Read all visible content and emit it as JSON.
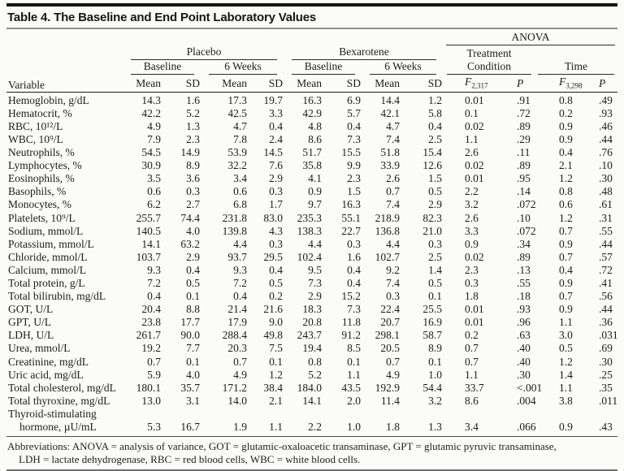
{
  "title": "Table 4. The Baseline and End Point Laboratory Values",
  "table": {
    "group_headers": {
      "anova": "ANOVA",
      "placebo": "Placebo",
      "bexarotene": "Bexarotene",
      "treatment_condition": "Treatment Condition",
      "time": "Time",
      "baseline": "Baseline",
      "six_weeks": "6 Weeks"
    },
    "column_headers": {
      "variable": "Variable",
      "mean": "Mean",
      "sd": "SD",
      "f_label": "F",
      "f_treatment_sub": "2,317",
      "f_time_sub": "3,298",
      "p_label": "P"
    },
    "rows": [
      {
        "label": "Hemoglobin, g/dL",
        "values": [
          "14.3",
          "1.6",
          "17.3",
          "19.7",
          "16.3",
          "6.9",
          "14.4",
          "1.2",
          "0.01",
          ".91",
          "0.8",
          ".49"
        ]
      },
      {
        "label": "Hematocrit, %",
        "values": [
          "42.2",
          "5.2",
          "42.5",
          "3.3",
          "42.9",
          "5.7",
          "42.1",
          "5.8",
          "0.1",
          ".72",
          "0.2",
          ".93"
        ]
      },
      {
        "label": "RBC, 10¹²/L",
        "values": [
          "4.9",
          "1.3",
          "4.7",
          "0.4",
          "4.8",
          "0.4",
          "4.7",
          "0.4",
          "0.02",
          ".89",
          "0.9",
          ".46"
        ]
      },
      {
        "label": "WBC, 10⁹/L",
        "values": [
          "7.9",
          "2.3",
          "7.8",
          "2.4",
          "8.6",
          "7.3",
          "7.4",
          "2.5",
          "1.1",
          ".29",
          "0.9",
          ".44"
        ]
      },
      {
        "label": "Neutrophils, %",
        "values": [
          "54.5",
          "14.9",
          "53.9",
          "14.5",
          "51.7",
          "15.5",
          "51.8",
          "15.4",
          "2.6",
          ".11",
          "0.4",
          ".76"
        ]
      },
      {
        "label": "Lymphocytes, %",
        "values": [
          "30.9",
          "8.9",
          "32.2",
          "7.6",
          "35.8",
          "9.9",
          "33.9",
          "12.6",
          "0.02",
          ".89",
          "2.1",
          ".10"
        ]
      },
      {
        "label": "Eosinophils, %",
        "values": [
          "3.5",
          "3.6",
          "3.4",
          "2.9",
          "4.1",
          "2.3",
          "2.6",
          "1.5",
          "0.01",
          ".95",
          "1.2",
          ".30"
        ]
      },
      {
        "label": "Basophils, %",
        "values": [
          "0.6",
          "0.3",
          "0.6",
          "0.3",
          "0.9",
          "1.5",
          "0.7",
          "0.5",
          "2.2",
          ".14",
          "0.8",
          ".48"
        ]
      },
      {
        "label": "Monocytes, %",
        "values": [
          "6.2",
          "2.7",
          "6.8",
          "1.7",
          "9.7",
          "16.3",
          "7.4",
          "2.9",
          "3.2",
          ".072",
          "0.6",
          ".61"
        ]
      },
      {
        "label": "Platelets, 10⁹/L",
        "values": [
          "255.7",
          "74.4",
          "231.8",
          "83.0",
          "235.3",
          "55.1",
          "218.9",
          "82.3",
          "2.6",
          ".10",
          "1.2",
          ".31"
        ]
      },
      {
        "label": "Sodium, mmol/L",
        "values": [
          "140.5",
          "4.0",
          "139.8",
          "4.3",
          "138.3",
          "22.7",
          "136.8",
          "21.0",
          "3.3",
          ".072",
          "0.7",
          ".55"
        ]
      },
      {
        "label": "Potassium, mmol/L",
        "values": [
          "14.1",
          "63.2",
          "4.4",
          "0.3",
          "4.4",
          "0.3",
          "4.4",
          "0.3",
          "0.9",
          ".34",
          "0.9",
          ".44"
        ]
      },
      {
        "label": "Chloride, mmol/L",
        "values": [
          "103.7",
          "2.9",
          "93.7",
          "29.5",
          "102.4",
          "1.6",
          "102.7",
          "2.5",
          "0.02",
          ".89",
          "0.7",
          ".57"
        ]
      },
      {
        "label": "Calcium, mmol/L",
        "values": [
          "9.3",
          "0.4",
          "9.3",
          "0.4",
          "9.5",
          "0.4",
          "9.2",
          "1.4",
          "2.3",
          ".13",
          "0.4",
          ".72"
        ]
      },
      {
        "label": "Total protein, g/L",
        "values": [
          "7.2",
          "0.5",
          "7.2",
          "0.5",
          "7.3",
          "0.4",
          "7.4",
          "0.5",
          "0.3",
          ".55",
          "0.9",
          ".41"
        ]
      },
      {
        "label": "Total bilirubin, mg/dL",
        "values": [
          "0.4",
          "0.1",
          "0.4",
          "0.2",
          "2.9",
          "15.2",
          "0.3",
          "0.1",
          "1.8",
          ".18",
          "0.7",
          ".56"
        ]
      },
      {
        "label": "GOT, U/L",
        "values": [
          "20.4",
          "8.8",
          "21.4",
          "21.6",
          "18.3",
          "7.3",
          "22.4",
          "25.5",
          "0.01",
          ".93",
          "0.9",
          ".44"
        ]
      },
      {
        "label": "GPT, U/L",
        "values": [
          "23.8",
          "17.7",
          "17.9",
          "9.0",
          "20.8",
          "11.8",
          "20.7",
          "16.9",
          "0.01",
          ".96",
          "1.1",
          ".36"
        ]
      },
      {
        "label": "LDH, U/L",
        "values": [
          "261.7",
          "90.0",
          "288.4",
          "49.8",
          "243.7",
          "91.2",
          "298.1",
          "58.7",
          "0.2",
          ".63",
          "3.0",
          ".031"
        ]
      },
      {
        "label": "Urea, mmol/L",
        "values": [
          "19.2",
          "7.7",
          "20.3",
          "7.5",
          "19.4",
          "8.5",
          "20.5",
          "8.9",
          "0.7",
          ".40",
          "0.5",
          ".69"
        ]
      },
      {
        "label": "Creatinine, mg/dL",
        "values": [
          "0.7",
          "0.1",
          "0.7",
          "0.1",
          "0.8",
          "0.1",
          "0.7",
          "0.1",
          "0.7",
          ".40",
          "1.2",
          ".30"
        ]
      },
      {
        "label": "Uric acid, mg/dL",
        "values": [
          "5.9",
          "4.0",
          "4.9",
          "1.2",
          "5.2",
          "1.1",
          "4.9",
          "1.0",
          "1.1",
          ".30",
          "1.4",
          ".25"
        ]
      },
      {
        "label": "Total cholesterol, mg/dL",
        "values": [
          "180.1",
          "35.7",
          "171.2",
          "38.4",
          "184.0",
          "43.5",
          "192.9",
          "54.4",
          "33.7",
          "<.001",
          "1.1",
          ".35"
        ]
      },
      {
        "label": "Total thyroxine, mg/dL",
        "values": [
          "13.0",
          "3.1",
          "14.0",
          "2.1",
          "14.1",
          "2.0",
          "11.4",
          "3.2",
          "8.6",
          ".004",
          "3.8",
          ".011"
        ]
      },
      {
        "label": "Thyroid-stimulating",
        "label2": "hormone, µU/mL",
        "values": [
          "5.3",
          "16.7",
          "1.9",
          "1.1",
          "2.2",
          "1.0",
          "1.8",
          "1.3",
          "3.4",
          ".066",
          "0.9",
          ".43"
        ]
      }
    ]
  },
  "footnote": {
    "line1": "Abbreviations: ANOVA = analysis of variance, GOT = glutamic-oxaloacetic transaminase, GPT = glutamic pyruvic transaminase,",
    "line2": "LDH = lactate dehydrogenase, RBC = red blood cells, WBC = white blood cells."
  }
}
